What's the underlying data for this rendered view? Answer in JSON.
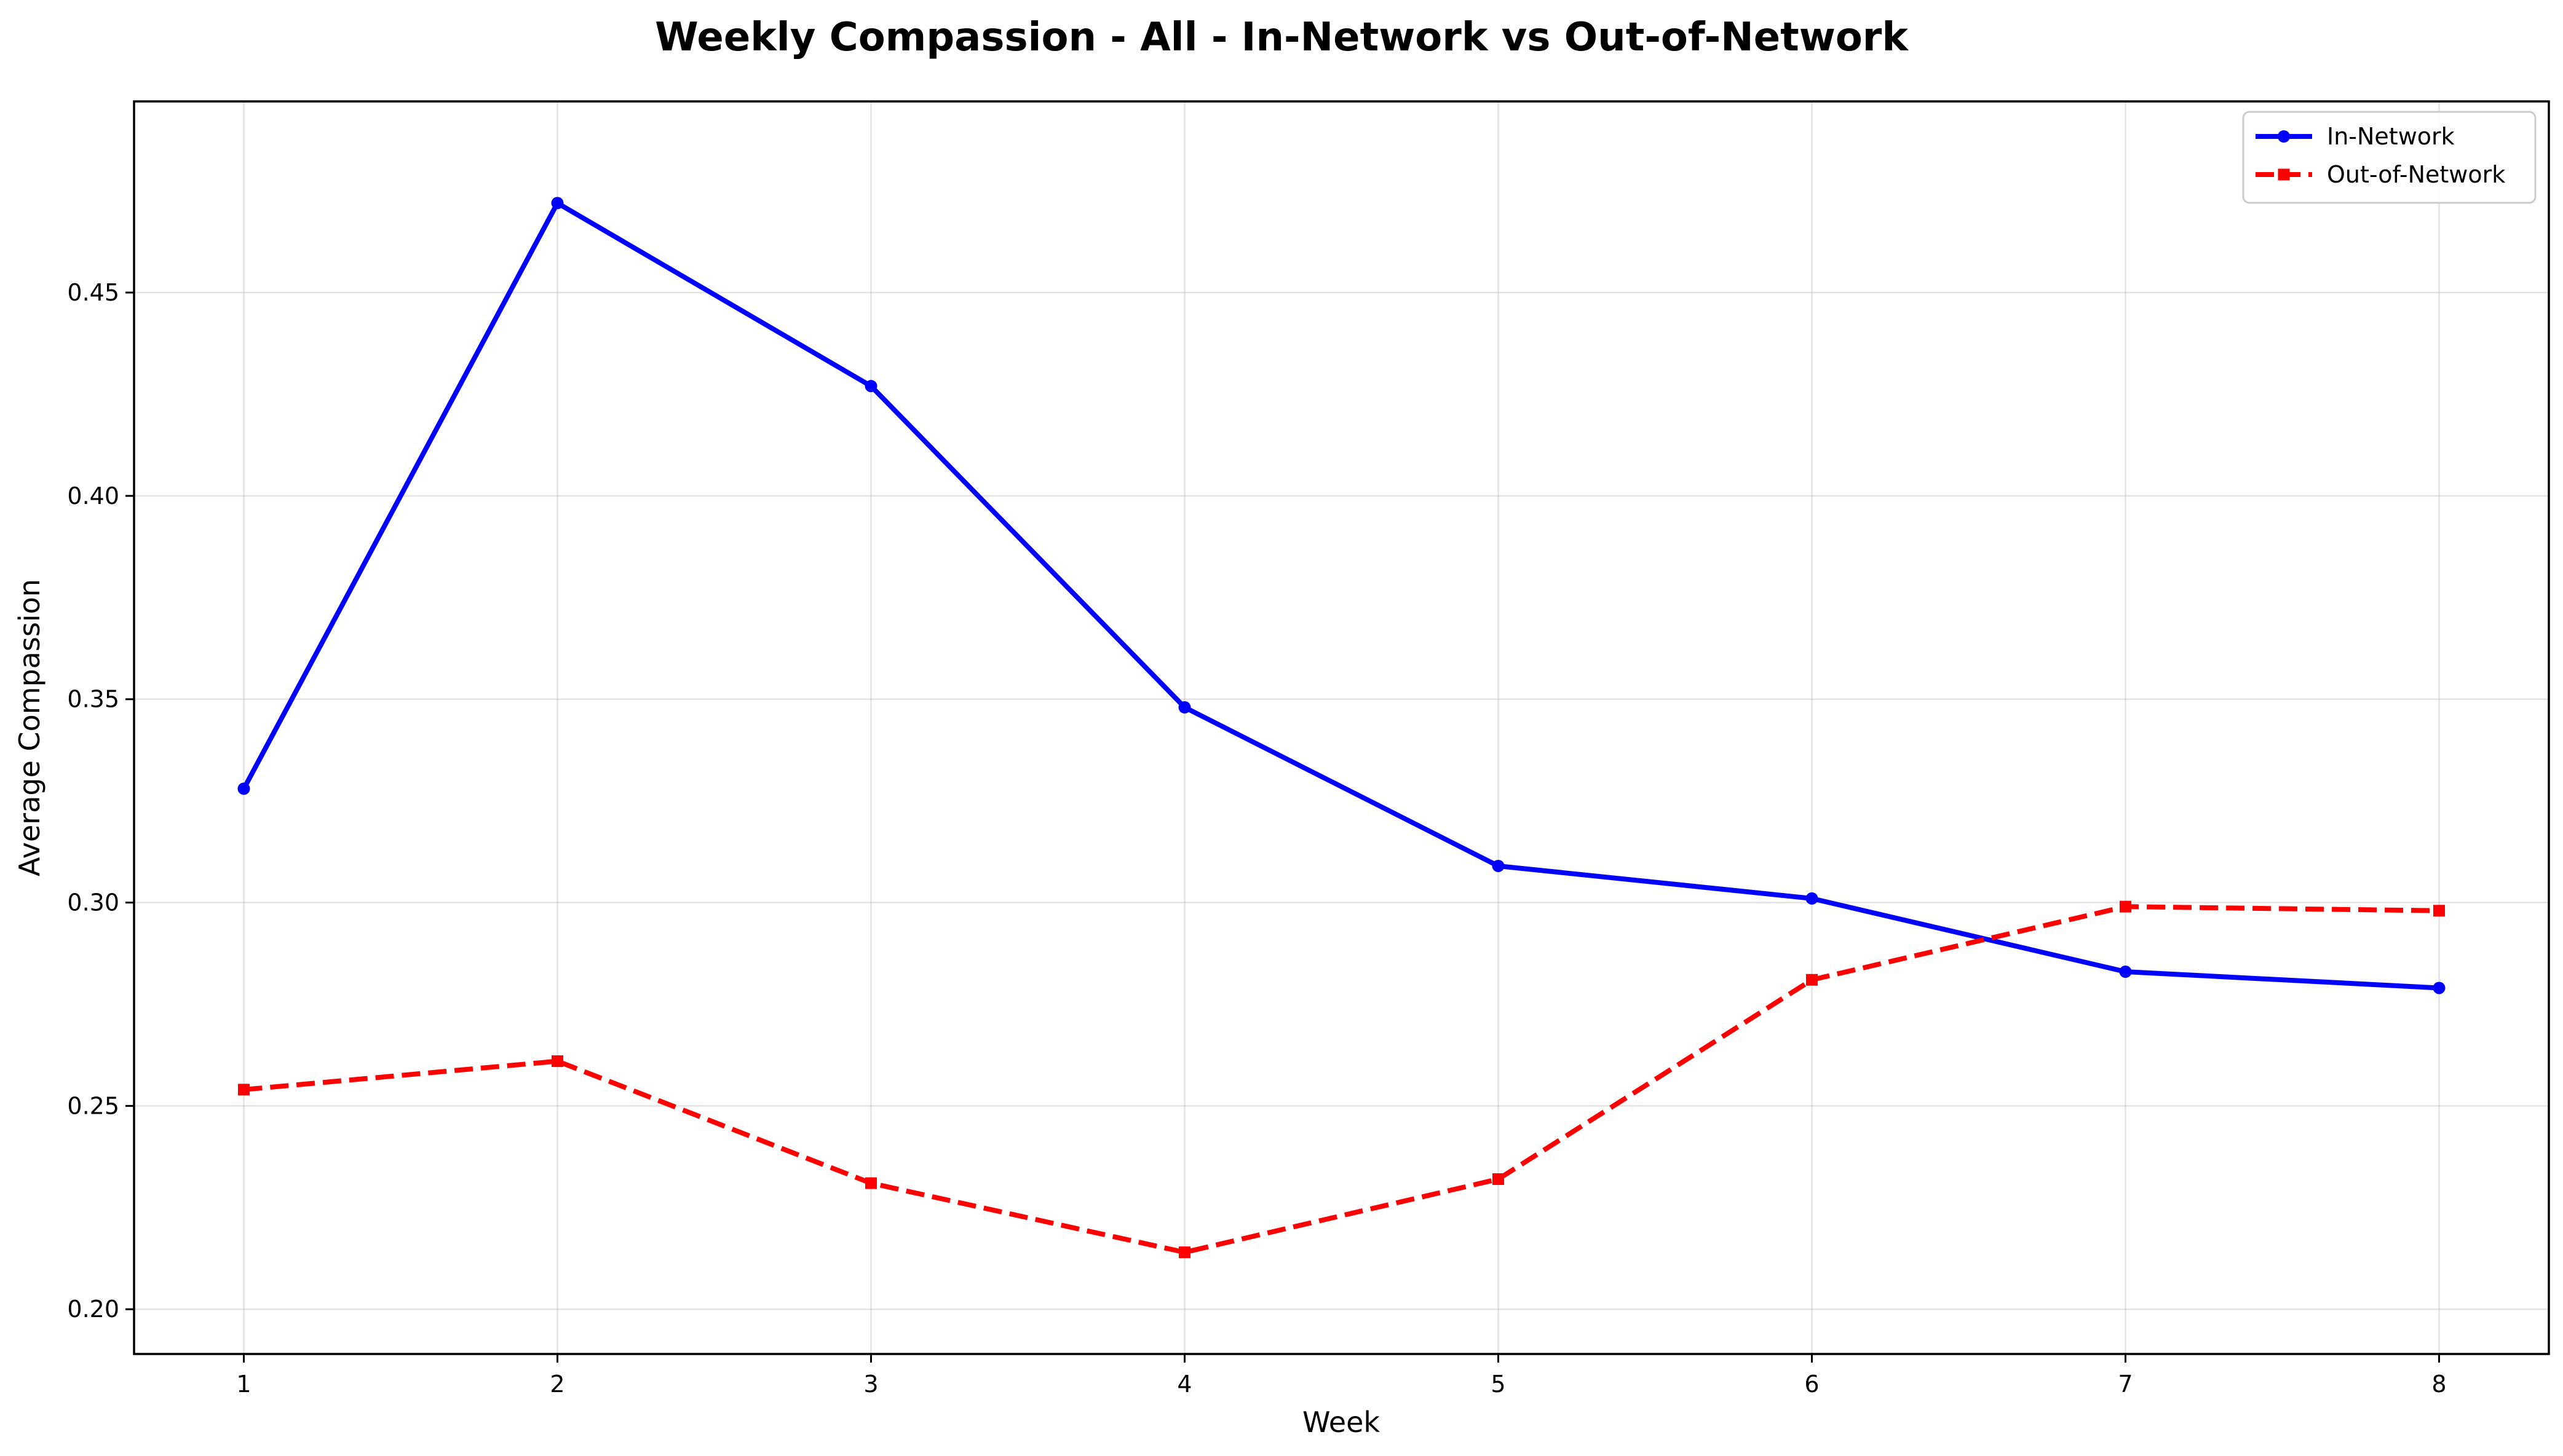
{
  "chart_data": {
    "type": "line",
    "title": "Weekly Compassion - All - In-Network vs Out-of-Network",
    "xlabel": "Week",
    "ylabel": "Average Compassion",
    "x": [
      1,
      2,
      3,
      4,
      5,
      6,
      7,
      8
    ],
    "xlim": [
      0.65,
      8.35
    ],
    "ylim": [
      0.189,
      0.497
    ],
    "xticks": [
      "1",
      "2",
      "3",
      "4",
      "5",
      "6",
      "7",
      "8"
    ],
    "yticks": [
      0.2,
      0.25,
      0.3,
      0.35,
      0.4,
      0.45
    ],
    "ytick_labels": [
      "0.20",
      "0.25",
      "0.30",
      "0.35",
      "0.40",
      "0.45"
    ],
    "grid": true,
    "legend_position": "top-right",
    "series": [
      {
        "name": "In-Network",
        "color": "#0000ff",
        "style": "solid",
        "marker": "circle",
        "values": [
          0.328,
          0.472,
          0.427,
          0.348,
          0.309,
          0.301,
          0.283,
          0.279
        ]
      },
      {
        "name": "Out-of-Network",
        "color": "#ff0000",
        "style": "dashed",
        "marker": "square",
        "values": [
          0.254,
          0.261,
          0.231,
          0.214,
          0.232,
          0.281,
          0.299,
          0.298
        ]
      }
    ]
  }
}
